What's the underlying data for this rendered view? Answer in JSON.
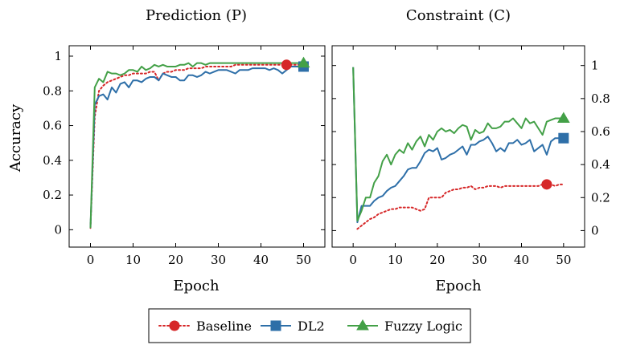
{
  "chart_data": [
    {
      "type": "line",
      "title": "Prediction (P)",
      "xlabel": "Epoch",
      "ylabel": "Accuracy",
      "xlim": [
        -5,
        55
      ],
      "ylim": [
        -0.1,
        1.06
      ],
      "xticks": [
        0,
        10,
        20,
        30,
        40,
        50
      ],
      "yticks": [
        0,
        0.2,
        0.4,
        0.6,
        0.8,
        1
      ],
      "ytick_labels": [
        "0",
        "0.2",
        "0.4",
        "0.6",
        "0.8",
        "1"
      ],
      "y_axis_side": "left",
      "x": [
        0,
        1,
        2,
        3,
        4,
        5,
        6,
        7,
        8,
        9,
        10,
        11,
        12,
        13,
        14,
        15,
        16,
        17,
        18,
        19,
        20,
        21,
        22,
        23,
        24,
        25,
        26,
        27,
        28,
        29,
        30,
        31,
        32,
        33,
        34,
        35,
        36,
        37,
        38,
        39,
        40,
        41,
        42,
        43,
        44,
        45,
        46,
        47,
        48,
        49,
        50
      ],
      "series": [
        {
          "name": "Baseline",
          "color": "#d62728",
          "style": "dotted",
          "marker": "circle",
          "marker_at": 46,
          "values": [
            0.01,
            0.65,
            0.8,
            0.83,
            0.85,
            0.86,
            0.87,
            0.88,
            0.89,
            0.89,
            0.9,
            0.9,
            0.9,
            0.9,
            0.91,
            0.91,
            0.86,
            0.9,
            0.91,
            0.91,
            0.92,
            0.92,
            0.92,
            0.93,
            0.93,
            0.93,
            0.93,
            0.94,
            0.94,
            0.94,
            0.94,
            0.94,
            0.94,
            0.94,
            0.95,
            0.95,
            0.95,
            0.95,
            0.95,
            0.95,
            0.95,
            0.95,
            0.95,
            0.95,
            0.95,
            0.95,
            0.95,
            0.95,
            0.95,
            0.95,
            0.95
          ]
        },
        {
          "name": "DL2",
          "color": "#2e6fa8",
          "style": "solid",
          "marker": "square",
          "marker_at": 50,
          "values": [
            0.01,
            0.72,
            0.77,
            0.78,
            0.75,
            0.82,
            0.79,
            0.84,
            0.85,
            0.82,
            0.86,
            0.86,
            0.85,
            0.87,
            0.88,
            0.88,
            0.86,
            0.9,
            0.89,
            0.88,
            0.88,
            0.86,
            0.86,
            0.89,
            0.89,
            0.88,
            0.89,
            0.91,
            0.9,
            0.91,
            0.92,
            0.92,
            0.92,
            0.91,
            0.9,
            0.92,
            0.92,
            0.92,
            0.93,
            0.93,
            0.93,
            0.93,
            0.92,
            0.93,
            0.92,
            0.9,
            0.92,
            0.94,
            0.94,
            0.94,
            0.94
          ]
        },
        {
          "name": "Fuzzy Logic",
          "color": "#43a047",
          "style": "solid",
          "marker": "triangle",
          "marker_at": 50,
          "values": [
            0.01,
            0.82,
            0.87,
            0.85,
            0.91,
            0.9,
            0.9,
            0.89,
            0.9,
            0.92,
            0.92,
            0.91,
            0.94,
            0.92,
            0.93,
            0.95,
            0.94,
            0.95,
            0.94,
            0.94,
            0.94,
            0.95,
            0.95,
            0.96,
            0.94,
            0.96,
            0.96,
            0.95,
            0.96,
            0.96,
            0.96,
            0.96,
            0.96,
            0.96,
            0.96,
            0.96,
            0.96,
            0.96,
            0.96,
            0.96,
            0.96,
            0.96,
            0.96,
            0.96,
            0.96,
            0.96,
            0.96,
            0.96,
            0.96,
            0.96,
            0.96
          ]
        }
      ]
    },
    {
      "type": "line",
      "title": "Constraint (C)",
      "xlabel": "Epoch",
      "ylabel": "",
      "xlim": [
        -5,
        55
      ],
      "ylim": [
        -0.1,
        1.12
      ],
      "xticks": [
        0,
        10,
        20,
        30,
        40,
        50
      ],
      "yticks": [
        0,
        0.2,
        0.4,
        0.6,
        0.8,
        1
      ],
      "ytick_labels": [
        "0",
        "0.2",
        "0.4",
        "0.6",
        "0.8",
        "1"
      ],
      "y_axis_side": "right",
      "x": [
        0,
        1,
        2,
        3,
        4,
        5,
        6,
        7,
        8,
        9,
        10,
        11,
        12,
        13,
        14,
        15,
        16,
        17,
        18,
        19,
        20,
        21,
        22,
        23,
        24,
        25,
        26,
        27,
        28,
        29,
        30,
        31,
        32,
        33,
        34,
        35,
        36,
        37,
        38,
        39,
        40,
        41,
        42,
        43,
        44,
        45,
        46,
        47,
        48,
        49,
        50
      ],
      "series": [
        {
          "name": "Baseline",
          "color": "#d62728",
          "style": "dotted",
          "marker": "circle",
          "marker_at": 46,
          "values": [
            null,
            0.01,
            0.03,
            0.05,
            0.07,
            0.08,
            0.1,
            0.11,
            0.12,
            0.13,
            0.13,
            0.14,
            0.14,
            0.14,
            0.14,
            0.13,
            0.12,
            0.13,
            0.2,
            0.2,
            0.2,
            0.2,
            0.23,
            0.24,
            0.25,
            0.25,
            0.26,
            0.26,
            0.27,
            0.25,
            0.26,
            0.26,
            0.27,
            0.27,
            0.27,
            0.26,
            0.27,
            0.27,
            0.27,
            0.27,
            0.27,
            0.27,
            0.27,
            0.27,
            0.27,
            0.28,
            0.28,
            0.28,
            0.27,
            0.28,
            0.28
          ]
        },
        {
          "name": "DL2",
          "color": "#2e6fa8",
          "style": "solid",
          "marker": "square",
          "marker_at": 50,
          "values": [
            0.99,
            0.05,
            0.15,
            0.15,
            0.15,
            0.18,
            0.2,
            0.21,
            0.24,
            0.26,
            0.27,
            0.3,
            0.33,
            0.37,
            0.38,
            0.38,
            0.42,
            0.47,
            0.49,
            0.48,
            0.5,
            0.43,
            0.44,
            0.46,
            0.47,
            0.49,
            0.51,
            0.46,
            0.52,
            0.52,
            0.54,
            0.55,
            0.57,
            0.53,
            0.48,
            0.5,
            0.48,
            0.53,
            0.53,
            0.55,
            0.52,
            0.53,
            0.55,
            0.48,
            0.5,
            0.52,
            0.46,
            0.54,
            0.56,
            0.56,
            0.56
          ]
        },
        {
          "name": "Fuzzy Logic",
          "color": "#43a047",
          "style": "solid",
          "marker": "triangle",
          "marker_at": 50,
          "values": [
            0.99,
            0.06,
            0.12,
            0.2,
            0.2,
            0.29,
            0.33,
            0.42,
            0.46,
            0.4,
            0.46,
            0.49,
            0.47,
            0.53,
            0.49,
            0.54,
            0.57,
            0.51,
            0.58,
            0.55,
            0.6,
            0.62,
            0.6,
            0.61,
            0.59,
            0.62,
            0.64,
            0.63,
            0.55,
            0.61,
            0.59,
            0.6,
            0.65,
            0.62,
            0.62,
            0.63,
            0.66,
            0.66,
            0.68,
            0.65,
            0.62,
            0.68,
            0.65,
            0.66,
            0.62,
            0.58,
            0.66,
            0.67,
            0.68,
            0.68,
            0.68
          ]
        }
      ]
    }
  ],
  "legend": {
    "placement": "bottom-center",
    "entries": [
      {
        "label": "Baseline",
        "color": "#d62728",
        "style": "dotted",
        "marker": "circle"
      },
      {
        "label": "DL2",
        "color": "#2e6fa8",
        "style": "solid",
        "marker": "square"
      },
      {
        "label": "Fuzzy Logic",
        "color": "#43a047",
        "style": "solid",
        "marker": "triangle"
      }
    ]
  }
}
